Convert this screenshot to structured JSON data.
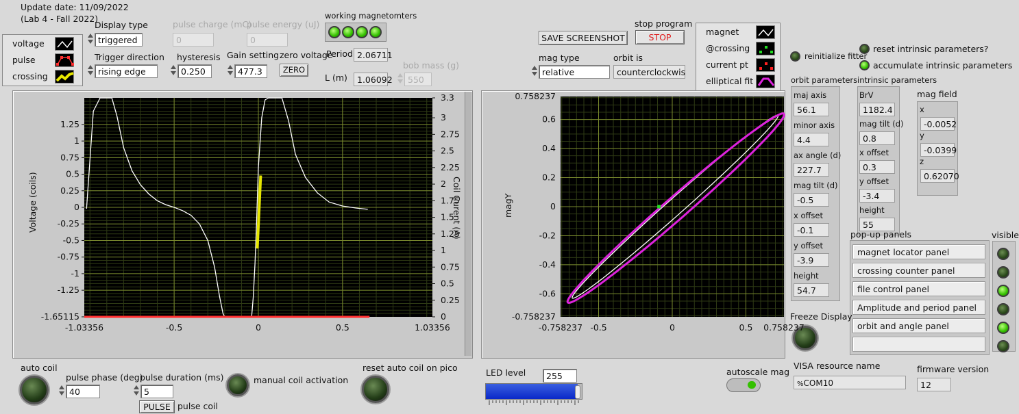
{
  "header": {
    "update_date": "Update date: 11/09/2022",
    "lab": "(Lab 4 - Fall 2022)"
  },
  "legend_left": {
    "items": [
      {
        "label": "voltage",
        "icon": "line-trace-icon",
        "color": "#ffffff"
      },
      {
        "label": "pulse",
        "icon": "pulse-trace-icon",
        "color": "#ff3030"
      },
      {
        "label": "crossing",
        "icon": "crossing-trace-icon",
        "color": "#e6e600"
      }
    ]
  },
  "display_type": {
    "label": "Display type",
    "value": "triggered"
  },
  "trigger_direction": {
    "label": "Trigger direction",
    "value": "rising edge"
  },
  "hysteresis": {
    "label": "hysteresis",
    "value": "0.250"
  },
  "gain_setting": {
    "label": "Gain setting",
    "value": "477.3"
  },
  "zero_voltage": {
    "label": "zero voltage",
    "button": "ZERO"
  },
  "pulse_charge": {
    "label": "pulse charge (mC)",
    "value": "0"
  },
  "pulse_energy": {
    "label": "pulse energy (uJ)",
    "value": "0"
  },
  "working_magnetometers": {
    "label": "working magnetomters",
    "leds": [
      true,
      true,
      true,
      true
    ]
  },
  "period": {
    "label": "Period",
    "value": "2.06711"
  },
  "length": {
    "label": "L (m)",
    "value": "1.06092"
  },
  "bob_mass": {
    "label": "bob mass (g)",
    "value": "550"
  },
  "save_screenshot": {
    "label": "SAVE SCREENSHOT"
  },
  "stop_program": {
    "label": "stop program",
    "button": "STOP"
  },
  "mag_type": {
    "label": "mag type",
    "value": "relative"
  },
  "orbit_is": {
    "label": "orbit is",
    "value": "counterclockwis"
  },
  "legend_right": {
    "items": [
      {
        "label": "magnet",
        "icon": "line-trace-icon",
        "color": "#ffffff"
      },
      {
        "label": "@crossing",
        "icon": "green-dots-icon",
        "color": "#22dd22"
      },
      {
        "label": "current pt",
        "icon": "red-dots-icon",
        "color": "#ff2020"
      },
      {
        "label": "elliptical fit",
        "icon": "magenta-trace-icon",
        "color": "#dd22dd"
      }
    ]
  },
  "reinitialize_fitter": {
    "label": "reinitialize fitter",
    "on": false
  },
  "reset_intrinsic": {
    "label": "reset intrinsic parameters?",
    "on": false
  },
  "accumulate_intrinsic": {
    "label": "accumulate intrinsic parameters",
    "on": true
  },
  "orbit_parameters": {
    "title": "orbit parameters",
    "fields": [
      {
        "label": "maj axis",
        "value": "56.1"
      },
      {
        "label": "minor axis",
        "value": "4.4"
      },
      {
        "label": "ax angle (d)",
        "value": "227.7"
      },
      {
        "label": "mag  tilt (d)",
        "value": "-0.5"
      },
      {
        "label": "x offset",
        "value": "-0.1"
      },
      {
        "label": "y offset",
        "value": "-3.9"
      },
      {
        "label": "height",
        "value": "54.7"
      }
    ]
  },
  "intrinsic_parameters": {
    "title": "intrinsic parameters",
    "fields": [
      {
        "label": "BrV",
        "value": "1182.4"
      },
      {
        "label": "mag tilt (d)",
        "value": "0.8"
      },
      {
        "label": "x offset",
        "value": "0.3"
      },
      {
        "label": "y offset",
        "value": "-3.4"
      },
      {
        "label": "height",
        "value": "55"
      }
    ]
  },
  "mag_field": {
    "title": "mag field",
    "fields": [
      {
        "label": "x",
        "value": "-0.0052"
      },
      {
        "label": "y",
        "value": "-0.0399"
      },
      {
        "label": "z",
        "value": "0.62070"
      }
    ]
  },
  "popup_panels": {
    "title": "pop-up panels",
    "items": [
      "magnet locator panel",
      "crossing counter panel",
      "file control panel",
      "Amplitude and period panel",
      "orbit and angle panel",
      ""
    ]
  },
  "visible": {
    "title": "visible",
    "leds": [
      false,
      false,
      true,
      false,
      true,
      false
    ]
  },
  "freeze_display": {
    "label": "Freeze Display",
    "on": false
  },
  "visa": {
    "label": "VISA resource name",
    "value": "COM10",
    "prefix": "%"
  },
  "firmware": {
    "label": "firmware version",
    "value": "12"
  },
  "auto_coil": {
    "label": "auto coil",
    "on": false
  },
  "pulse_phase": {
    "label": "pulse phase (deg)",
    "value": "40"
  },
  "pulse_duration": {
    "label": "pulse duration (ms)",
    "value": "5"
  },
  "pulse_button": {
    "label": "PULSE"
  },
  "pulse_coil": {
    "label": "pulse coil"
  },
  "manual_coil": {
    "label": "manual coil activation",
    "on": false
  },
  "reset_auto_coil": {
    "label": "reset auto coil on pico",
    "on": false
  },
  "led_level": {
    "label": "LED level",
    "value": "255",
    "fraction": 1.0
  },
  "autoscale_mag": {
    "label": "autoscale mag",
    "on": true
  },
  "chart_data": [
    {
      "type": "line",
      "ylabel": "Voltage (coils)",
      "y2label": "Coil Curent (A)",
      "xlim": [
        -1.03356,
        1.03356
      ],
      "ylim": [
        -1.65115,
        1.65115
      ],
      "y2lim": [
        0,
        3.3
      ],
      "x_ticks": [
        "-1.03356",
        "-0.5",
        "0",
        "0.5",
        "1.03356"
      ],
      "y_ticks": [
        "1.25",
        "1",
        "0.75",
        "0.5",
        "0.25",
        "0",
        "-0.25",
        "-0.5",
        "-0.75",
        "-1",
        "-1.25",
        "-1.65115"
      ],
      "y2_ticks": [
        "3.3",
        "3",
        "2.75",
        "2.5",
        "2.25",
        "2",
        "1.75",
        "1.5",
        "1.25",
        "1",
        "0.75",
        "0.5",
        "0.25",
        "0"
      ],
      "grid": true,
      "series": [
        {
          "color": "#ffffff",
          "axis": "left",
          "x": [
            -1.02,
            -0.98,
            -0.94,
            -0.9,
            -0.87,
            -0.84,
            -0.8,
            -0.75,
            -0.7,
            -0.65,
            -0.6,
            -0.55,
            -0.5,
            -0.45,
            -0.4,
            -0.35,
            -0.3,
            -0.26,
            -0.23,
            -0.21,
            -0.2
          ],
          "y": [
            -0.02,
            1.45,
            1.65,
            1.65,
            1.65,
            1.38,
            0.9,
            0.55,
            0.34,
            0.2,
            0.1,
            0.04,
            0.0,
            -0.05,
            -0.12,
            -0.25,
            -0.5,
            -0.9,
            -1.35,
            -1.6,
            -1.65
          ]
        },
        {
          "color": "#ffffff",
          "axis": "left",
          "x": [
            -0.04,
            -0.03,
            -0.02,
            -0.01,
            0.0,
            0.02,
            0.04,
            0.06,
            0.08,
            0.11,
            0.14,
            0.18,
            0.22,
            0.28,
            0.35,
            0.42,
            0.5,
            0.58,
            0.65
          ],
          "y": [
            -1.65,
            -1.35,
            -0.85,
            -0.2,
            0.6,
            1.35,
            1.62,
            1.65,
            1.65,
            1.65,
            1.65,
            1.3,
            0.8,
            0.45,
            0.22,
            0.08,
            0.02,
            -0.01,
            -0.03
          ]
        },
        {
          "color": "#ffffff",
          "axis": "left",
          "x": [
            -0.21,
            -0.04
          ],
          "y": [
            -1.65,
            -1.65
          ]
        },
        {
          "color": "#e6e600",
          "axis": "left",
          "x": [
            -0.006,
            0.014
          ],
          "y": [
            -0.62,
            0.48
          ]
        },
        {
          "color": "#ff3030",
          "axis": "left",
          "x": [
            -1.03356,
            -0.22,
            -0.02,
            0.66
          ],
          "y": [
            -1.65115,
            -1.65115,
            -1.65115,
            -1.65115
          ]
        }
      ]
    },
    {
      "type": "scatter",
      "xlabel": "",
      "ylabel": "magY",
      "xlim": [
        -0.758237,
        0.758237
      ],
      "ylim": [
        -0.758237,
        0.758237
      ],
      "x_ticks": [
        "-0.758237",
        "-0.5",
        "0",
        "0.5",
        "0.758237"
      ],
      "y_ticks": [
        "0.758237",
        "0.6",
        "0.4",
        "0.2",
        "0",
        "-0.2",
        "-0.4",
        "-0.6",
        "-0.758237"
      ],
      "grid": true,
      "series": [
        {
          "color": "#ffffff",
          "shape": "ellipse",
          "center": [
            0.02,
            0.0
          ],
          "major_radius": 0.94,
          "minor_radius": 0.055,
          "angle_deg": 42
        },
        {
          "color": "#dd22dd",
          "shape": "ellipse",
          "center": [
            0.025,
            -0.01
          ],
          "major_radius": 0.98,
          "minor_radius": 0.075,
          "angle_deg": 41.5
        },
        {
          "color": "#22dd22",
          "shape": "point",
          "x": -0.09,
          "y": 0.0
        }
      ]
    }
  ]
}
